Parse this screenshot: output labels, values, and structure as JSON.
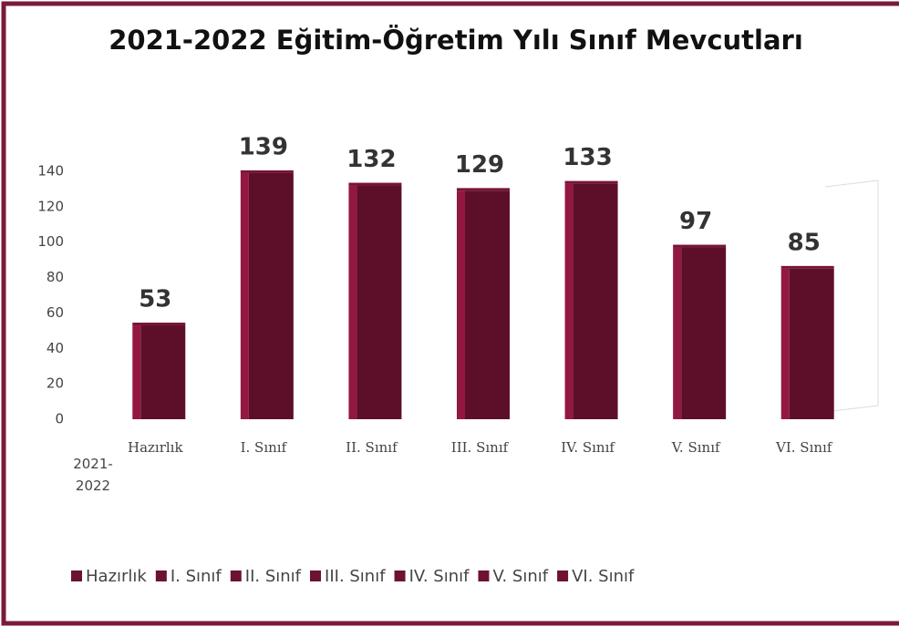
{
  "chart_data": {
    "type": "bar",
    "title": "2021-2022 Eğitim-Öğretim Yılı Sınıf Mevcutları",
    "categories": [
      "2021-2022"
    ],
    "series": [
      {
        "name": "Hazırlık",
        "color": "#6d1230",
        "values": [
          53
        ]
      },
      {
        "name": "I. Sınıf",
        "color": "#6d1230",
        "values": [
          139
        ]
      },
      {
        "name": "II. Sınıf",
        "color": "#6d1230",
        "values": [
          132
        ]
      },
      {
        "name": "III. Sınıf",
        "color": "#6d1230",
        "values": [
          129
        ]
      },
      {
        "name": "IV. Sınıf",
        "color": "#6d1230",
        "values": [
          133
        ]
      },
      {
        "name": "V. Sınıf",
        "color": "#6d1230",
        "values": [
          97
        ]
      },
      {
        "name": "VI. Sınıf",
        "color": "#6d1230",
        "values": [
          85
        ]
      }
    ],
    "ylim": [
      0,
      140
    ],
    "yticks": [
      0,
      20,
      40,
      60,
      80,
      100,
      120,
      140
    ],
    "grid": false,
    "legend": "bottom"
  }
}
